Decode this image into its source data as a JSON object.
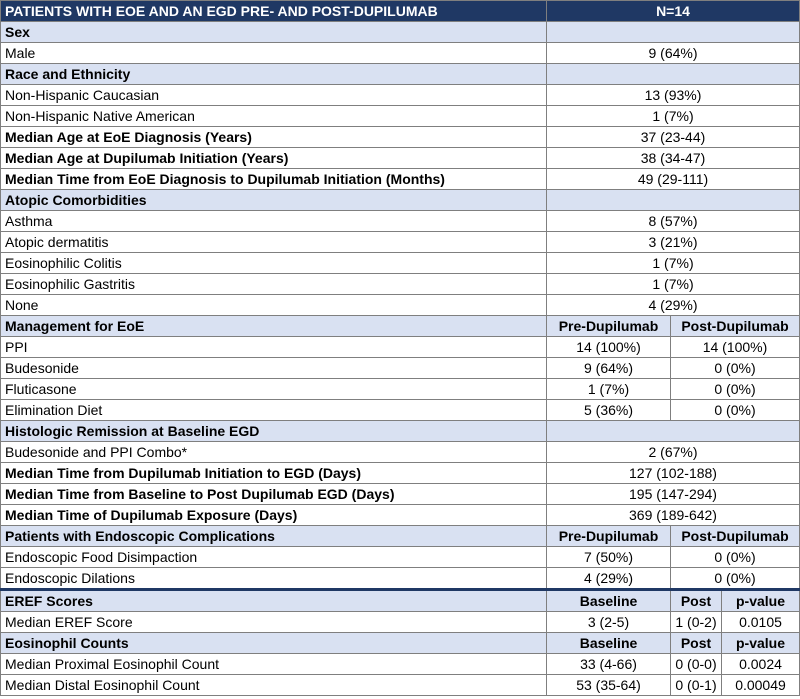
{
  "header": {
    "title": "PATIENTS WITH EOE AND AN EGD PRE- AND POST-DUPILUMAB",
    "n": "N=14"
  },
  "sex": {
    "label": "Sex",
    "male_label": "Male",
    "male_value": "9 (64%)"
  },
  "race": {
    "label": "Race and Ethnicity",
    "rows": [
      {
        "label": "Non-Hispanic Caucasian",
        "value": "13 (93%)"
      },
      {
        "label": "Non-Hispanic Native American",
        "value": "1 (7%)"
      }
    ]
  },
  "medians": {
    "age_dx_label": "Median Age at EoE Diagnosis (Years)",
    "age_dx_value": "37 (23-44)",
    "age_dupi_label": "Median Age at Dupilumab Initiation (Years)",
    "age_dupi_value": "38 (34-47)",
    "time_dx_label": "Median Time from EoE Diagnosis to Dupilumab Initiation (Months)",
    "time_dx_value": "49 (29-111)"
  },
  "atopic": {
    "label": "Atopic Comorbidities",
    "rows": [
      {
        "label": "Asthma",
        "value": "8 (57%)"
      },
      {
        "label": "Atopic dermatitis",
        "value": "3 (21%)"
      },
      {
        "label": "Eosinophilic Colitis",
        "value": "1 (7%)"
      },
      {
        "label": "Eosinophilic Gastritis",
        "value": "1 (7%)"
      },
      {
        "label": "None",
        "value": "4 (29%)"
      }
    ]
  },
  "management": {
    "label": "Management for EoE",
    "pre": "Pre-Dupilumab",
    "post": "Post-Dupilumab",
    "rows": [
      {
        "label": "PPI",
        "pre": "14 (100%)",
        "post": "14 (100%)"
      },
      {
        "label": "Budesonide",
        "pre": "9 (64%)",
        "post": "0 (0%)"
      },
      {
        "label": "Fluticasone",
        "pre": "1 (7%)",
        "post": "0 (0%)"
      },
      {
        "label": "Elimination Diet",
        "pre": "5 (36%)",
        "post": "0 (0%)"
      }
    ]
  },
  "histologic": {
    "label": "Histologic Remission at Baseline EGD",
    "combo_label": "Budesonide and PPI Combo*",
    "combo_value": "2 (67%)"
  },
  "times": {
    "rows": [
      {
        "label": "Median Time from Dupilumab Initiation to EGD (Days)",
        "value": "127 (102-188)"
      },
      {
        "label": "Median Time from Baseline to Post Dupilumab EGD (Days)",
        "value": "195 (147-294)"
      },
      {
        "label": "Median Time of Dupilumab Exposure (Days)",
        "value": "369 (189-642)"
      }
    ]
  },
  "complications": {
    "label": "Patients with Endoscopic Complications",
    "pre": "Pre-Dupilumab",
    "post": "Post-Dupilumab",
    "rows": [
      {
        "label": "Endoscopic Food Disimpaction",
        "pre": "7 (50%)",
        "post": "0 (0%)"
      },
      {
        "label": "Endoscopic Dilations",
        "pre": "4 (29%)",
        "post": "0 (0%)"
      }
    ]
  },
  "eref": {
    "label": "EREF Scores",
    "baseline": "Baseline",
    "post": "Post",
    "pvalue": "p-value",
    "row_label": "Median EREF Score",
    "row_baseline": "3 (2-5)",
    "row_post": "1 (0-2)",
    "row_p": "0.0105"
  },
  "eos": {
    "label": "Eosinophil Counts",
    "baseline": "Baseline",
    "post": "Post",
    "pvalue": "p-value",
    "rows": [
      {
        "label": "Median Proximal Eosinophil Count",
        "baseline": "33 (4-66)",
        "post": "0 (0-0)",
        "p": "0.0024"
      },
      {
        "label": "Median Distal Eosinophil Count",
        "baseline": "53 (35-64)",
        "post": "0 (0-1)",
        "p": "0.00049"
      }
    ]
  }
}
